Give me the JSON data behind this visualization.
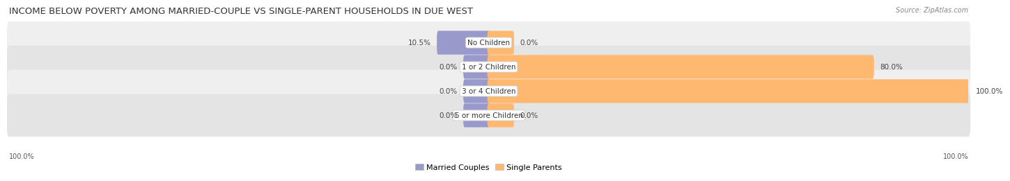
{
  "title": "INCOME BELOW POVERTY AMONG MARRIED-COUPLE VS SINGLE-PARENT HOUSEHOLDS IN DUE WEST",
  "source": "Source: ZipAtlas.com",
  "categories": [
    "No Children",
    "1 or 2 Children",
    "3 or 4 Children",
    "5 or more Children"
  ],
  "married_values": [
    10.5,
    0.0,
    0.0,
    0.0
  ],
  "single_values": [
    0.0,
    80.0,
    100.0,
    0.0
  ],
  "married_color": "#9999cc",
  "single_color": "#ffb870",
  "row_bg_color_light": "#efefef",
  "row_bg_color_dark": "#e4e4e4",
  "title_fontsize": 9.5,
  "label_fontsize": 7.5,
  "value_fontsize": 7.5,
  "source_fontsize": 7,
  "legend_fontsize": 8,
  "max_value": 100.0,
  "left_axis_label": "100.0%",
  "right_axis_label": "100.0%",
  "background_color": "#ffffff"
}
